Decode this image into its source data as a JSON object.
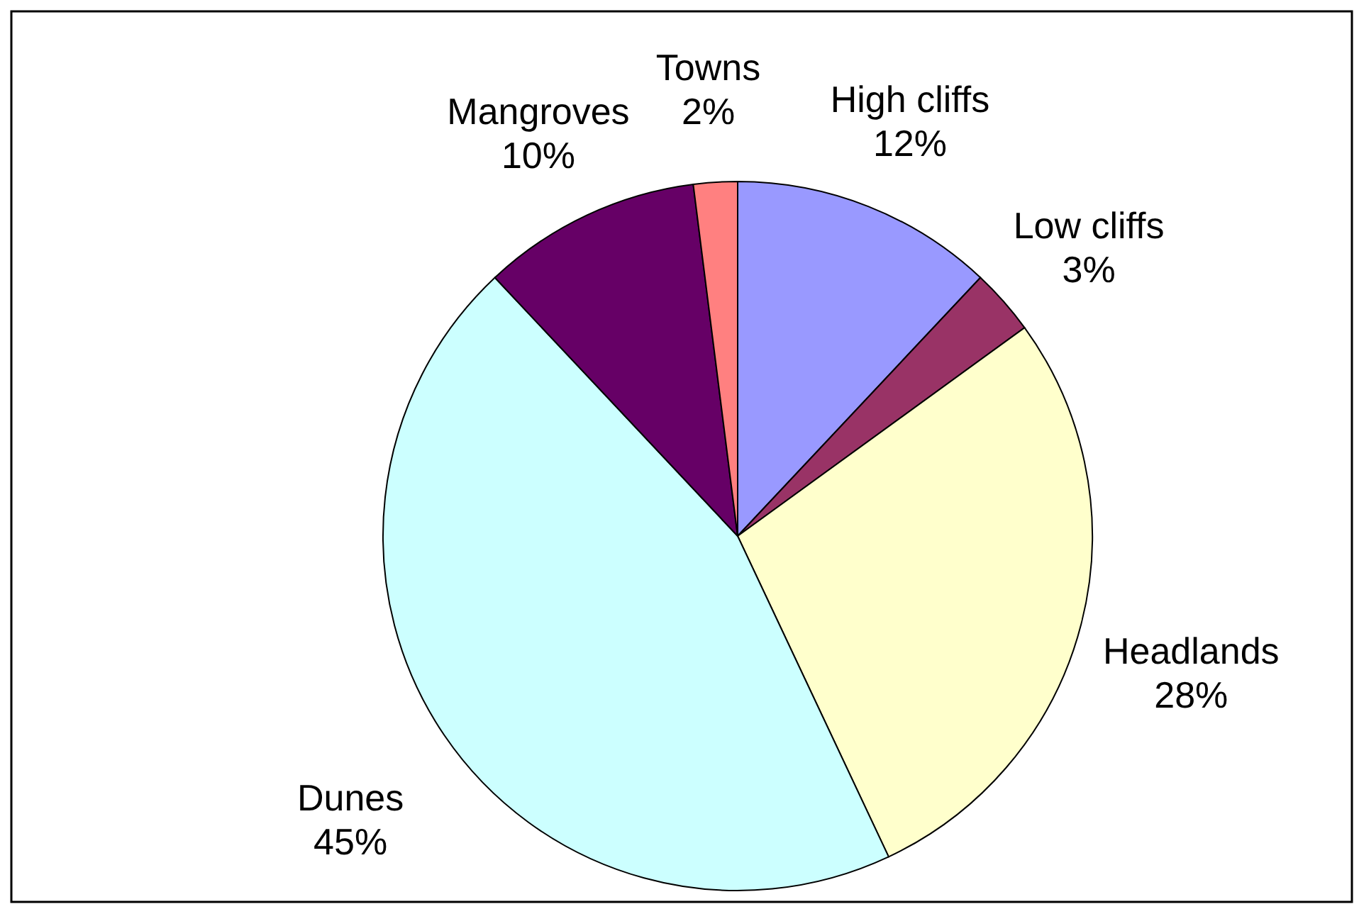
{
  "chart_data": {
    "type": "pie",
    "categories": [
      "High cliffs",
      "Low cliffs",
      "Headlands",
      "Dunes",
      "Mangroves",
      "Towns"
    ],
    "values": [
      12,
      3,
      28,
      45,
      10,
      2
    ],
    "colors": [
      "#9999ff",
      "#993366",
      "#ffffcc",
      "#ccffff",
      "#660066",
      "#ff8080"
    ],
    "value_labels": [
      "12%",
      "3%",
      "28%",
      "45%",
      "10%",
      "2%"
    ]
  }
}
